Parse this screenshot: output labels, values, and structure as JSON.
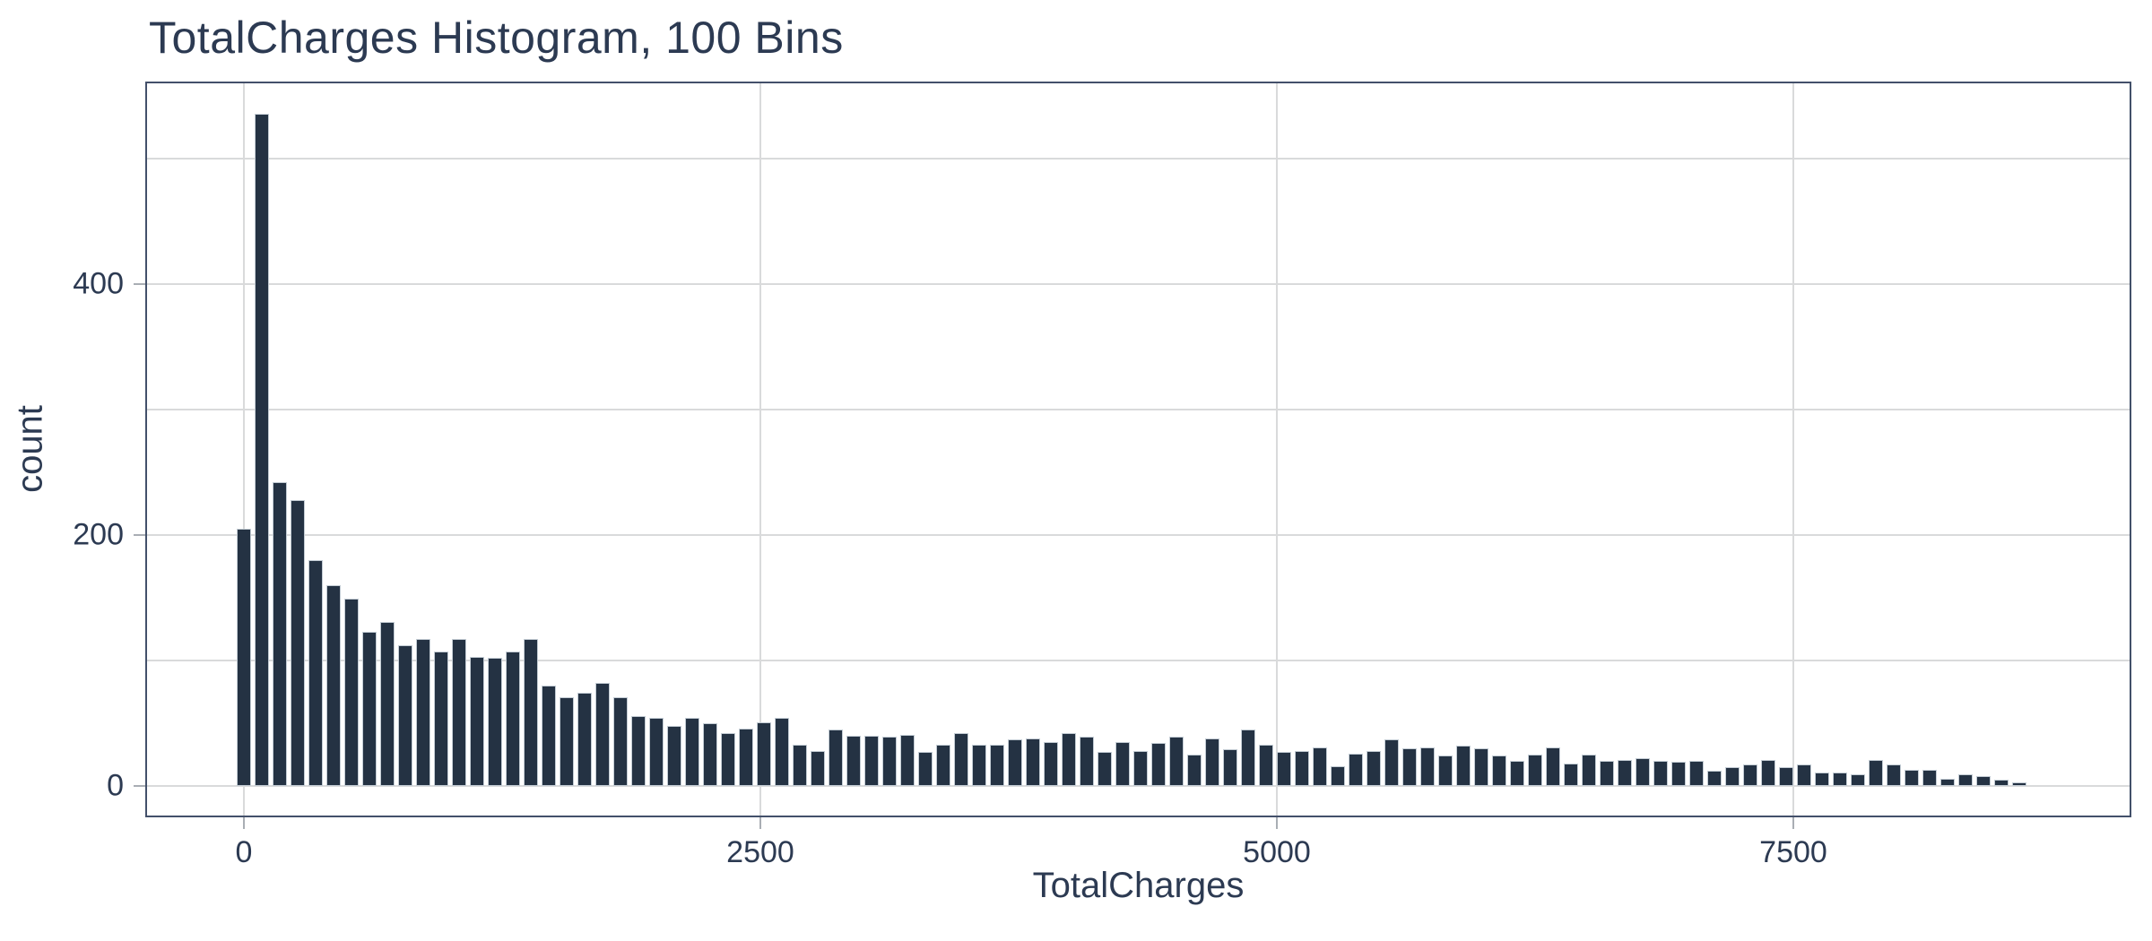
{
  "chart_data": {
    "type": "bar",
    "subtype": "histogram",
    "title": "TotalCharges Histogram, 100 Bins",
    "xlabel": "TotalCharges",
    "ylabel": "count",
    "bins": 100,
    "bin_center_start": 0,
    "bin_center_step": 86.8,
    "counts": [
      205,
      536,
      242,
      228,
      180,
      160,
      149,
      123,
      131,
      112,
      117,
      107,
      117,
      103,
      102,
      107,
      117,
      80,
      71,
      74,
      82,
      71,
      56,
      54,
      48,
      54,
      50,
      42,
      46,
      51,
      54,
      33,
      28,
      45,
      40,
      40,
      39,
      41,
      27,
      33,
      42,
      33,
      33,
      37,
      38,
      35,
      42,
      39,
      27,
      35,
      28,
      34,
      39,
      25,
      38,
      29,
      45,
      33,
      27,
      28,
      31,
      16,
      26,
      28,
      37,
      30,
      31,
      24,
      32,
      30,
      24,
      20,
      25,
      31,
      18,
      25,
      20,
      21,
      22,
      20,
      19,
      20,
      12,
      15,
      17,
      21,
      15,
      17,
      11,
      11,
      9,
      21,
      17,
      13,
      13,
      6,
      9,
      8,
      5,
      3
    ],
    "x_tick_values": [
      0,
      2500,
      5000,
      7500
    ],
    "x_tick_labels": [
      "0",
      "2500",
      "5000",
      "7500"
    ],
    "y_tick_values": [
      0,
      200,
      400
    ],
    "y_tick_labels": [
      "0",
      "200",
      "400"
    ],
    "x_gridline_values": [
      0,
      2500,
      5000,
      7500
    ],
    "y_gridline_values": [
      0,
      100,
      200,
      300,
      400,
      500
    ],
    "xlim": [
      -477,
      9136
    ],
    "ylim": [
      -25,
      561
    ],
    "grid": "on",
    "legend": "none",
    "colors": {
      "background": "#ffffff",
      "bar_fill": "#243243",
      "bar_edge": "#c3ccd4",
      "gridline": "#d9dadb",
      "spine": "#43506a",
      "tick_mark": "#a9aeb4",
      "text": "#2c3a52"
    }
  }
}
